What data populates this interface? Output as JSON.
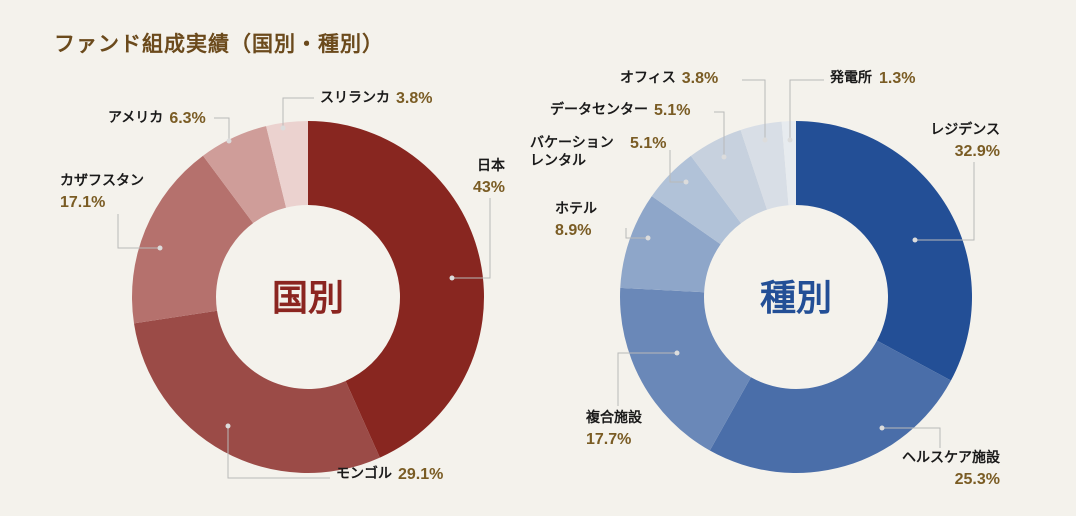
{
  "title": "ファンド組成実績（国別・種別）",
  "chart_data": [
    {
      "type": "pie",
      "center_label": "国別",
      "categories": [
        "日本",
        "モンゴル",
        "カザフスタン",
        "アメリカ",
        "スリランカ"
      ],
      "values": [
        43,
        29.1,
        17.1,
        6.3,
        3.8
      ],
      "value_labels": [
        "43%",
        "29.1%",
        "17.1%",
        "6.3%",
        "3.8%"
      ],
      "colors": [
        "#882620",
        "#9b4b47",
        "#b5716d",
        "#cf9d99",
        "#ebd2cf"
      ],
      "center_color": "#8b2520"
    },
    {
      "type": "pie",
      "center_label": "種別",
      "categories": [
        "レジデンス",
        "ヘルスケア施設",
        "複合施設",
        "ホテル",
        "バケーションレンタル",
        "データセンター",
        "オフィス",
        "発電所"
      ],
      "category_lines": [
        [
          "レジデンス"
        ],
        [
          "ヘルスケア施設"
        ],
        [
          "複合施設"
        ],
        [
          "ホテル"
        ],
        [
          "バケーション",
          "レンタル"
        ],
        [
          "データセンター"
        ],
        [
          "オフィス"
        ],
        [
          "発電所"
        ]
      ],
      "values": [
        32.9,
        25.3,
        17.7,
        8.9,
        5.1,
        5.1,
        3.8,
        1.3
      ],
      "value_labels": [
        "32.9%",
        "25.3%",
        "17.7%",
        "8.9%",
        "5.1%",
        "5.1%",
        "3.8%",
        "1.3%"
      ],
      "colors": [
        "#234f96",
        "#4a6ea9",
        "#6a88b8",
        "#8ea6c9",
        "#b1c2d8",
        "#c7d1de",
        "#d8dee6",
        "#e7ebef"
      ],
      "center_color": "#234f96"
    }
  ]
}
